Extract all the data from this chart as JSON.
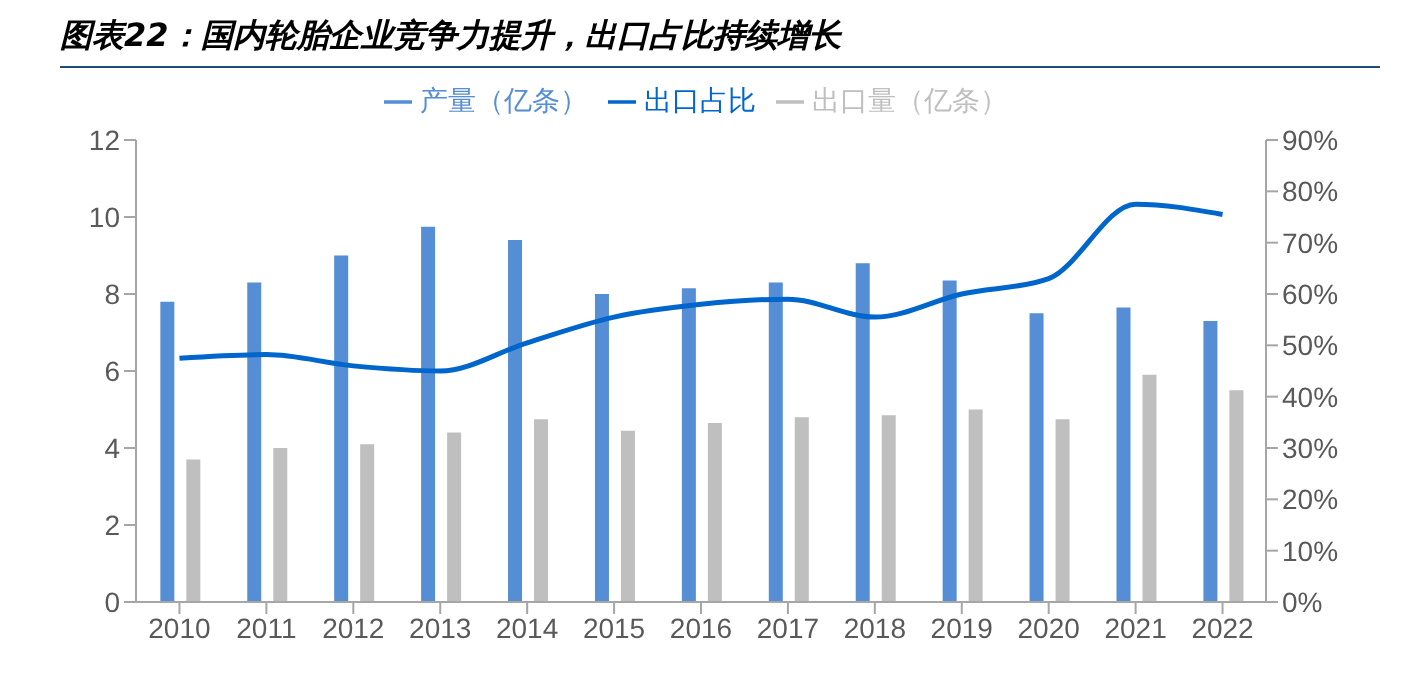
{
  "chart_data": {
    "type": "bar",
    "title": "图表22：国内轮胎企业竞争力提升，出口占比持续增长",
    "categories": [
      "2010",
      "2011",
      "2012",
      "2013",
      "2014",
      "2015",
      "2016",
      "2017",
      "2018",
      "2019",
      "2020",
      "2021",
      "2022"
    ],
    "series": [
      {
        "name": "产量（亿条）",
        "color": "#558ed5",
        "values": [
          7.8,
          8.3,
          9.0,
          9.75,
          9.4,
          8.0,
          8.15,
          8.3,
          8.8,
          8.35,
          7.5,
          7.65,
          7.3
        ]
      },
      {
        "name": "出口量（亿条）",
        "color": "#bfbfbf",
        "values": [
          3.7,
          4.0,
          4.1,
          4.4,
          4.75,
          4.45,
          4.65,
          4.8,
          4.85,
          5.0,
          4.75,
          5.9,
          5.5
        ]
      },
      {
        "name": "出口占比",
        "type": "line",
        "axis": "y2",
        "color": "#0066cc",
        "values": [
          47.5,
          48.2,
          46,
          45,
          50.5,
          55.5,
          58,
          59,
          55.5,
          60,
          63,
          77.5,
          75.5
        ]
      }
    ],
    "ylim": [
      0,
      12
    ],
    "yticks": [
      0,
      2,
      4,
      6,
      8,
      10,
      12
    ],
    "y2lim": [
      0,
      90
    ],
    "y2ticks": [
      {
        "value": 0,
        "label": "0%"
      },
      {
        "value": 10,
        "label": "10%"
      },
      {
        "value": 20,
        "label": "20%"
      },
      {
        "value": 30,
        "label": "30%"
      },
      {
        "value": 40,
        "label": "40%"
      },
      {
        "value": 50,
        "label": "50%"
      },
      {
        "value": 60,
        "label": "60%"
      },
      {
        "value": 70,
        "label": "70%"
      },
      {
        "value": 80,
        "label": "80%"
      },
      {
        "value": 90,
        "label": "90%"
      }
    ],
    "legend": "top",
    "grid": false,
    "marker": "none",
    "line_style": "solid"
  }
}
